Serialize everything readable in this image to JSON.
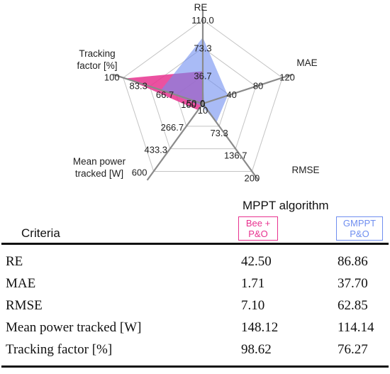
{
  "chart_data": {
    "type": "radar",
    "axes": [
      {
        "name": "RE",
        "ticks": [
          "0",
          "36.7",
          "73.3",
          "110.0"
        ],
        "max": 110
      },
      {
        "name": "MAE",
        "ticks": [
          "0",
          "40",
          "80",
          "120"
        ],
        "max": 120
      },
      {
        "name": "RMSE",
        "ticks": [
          "10",
          "73.3",
          "136.7",
          "200"
        ],
        "min": 10,
        "max": 200
      },
      {
        "name": "Mean power tracked [W]",
        "label_lines": [
          "Mean power",
          "tracked [W]"
        ],
        "ticks": [
          "100",
          "266.7",
          "433.3",
          "600"
        ],
        "min": 100,
        "max": 600
      },
      {
        "name": "Tracking factor [%]",
        "label_lines": [
          "Tracking",
          "factor [%]"
        ],
        "ticks": [
          "50",
          "66.7",
          "83.3",
          "100"
        ],
        "min": 50,
        "max": 100
      }
    ],
    "series": [
      {
        "name": "Bee + P&O",
        "color": "#e8328f",
        "values": [
          42.5,
          1.71,
          7.1,
          148.12,
          98.62
        ]
      },
      {
        "name": "GMPPT P&O",
        "color": "#6f8ef0",
        "values": [
          86.86,
          37.7,
          62.85,
          114.14,
          76.27
        ]
      }
    ]
  },
  "table": {
    "title": "MPPT algorithm",
    "criteria_header": "Criteria",
    "algorithms": [
      {
        "lines": [
          "Bee +",
          "P&O"
        ]
      },
      {
        "lines": [
          "GMPPT",
          "P&O"
        ]
      }
    ],
    "rows": [
      {
        "criterion": "RE",
        "bee": "42.50",
        "gmppt": "86.86"
      },
      {
        "criterion": "MAE",
        "bee": "1.71",
        "gmppt": "37.70"
      },
      {
        "criterion": "RMSE",
        "bee": "7.10",
        "gmppt": "62.85"
      },
      {
        "criterion": "Mean power tracked [W]",
        "bee": "148.12",
        "gmppt": "114.14"
      },
      {
        "criterion": "Tracking factor [%]",
        "bee": "98.62",
        "gmppt": "76.27"
      }
    ]
  }
}
